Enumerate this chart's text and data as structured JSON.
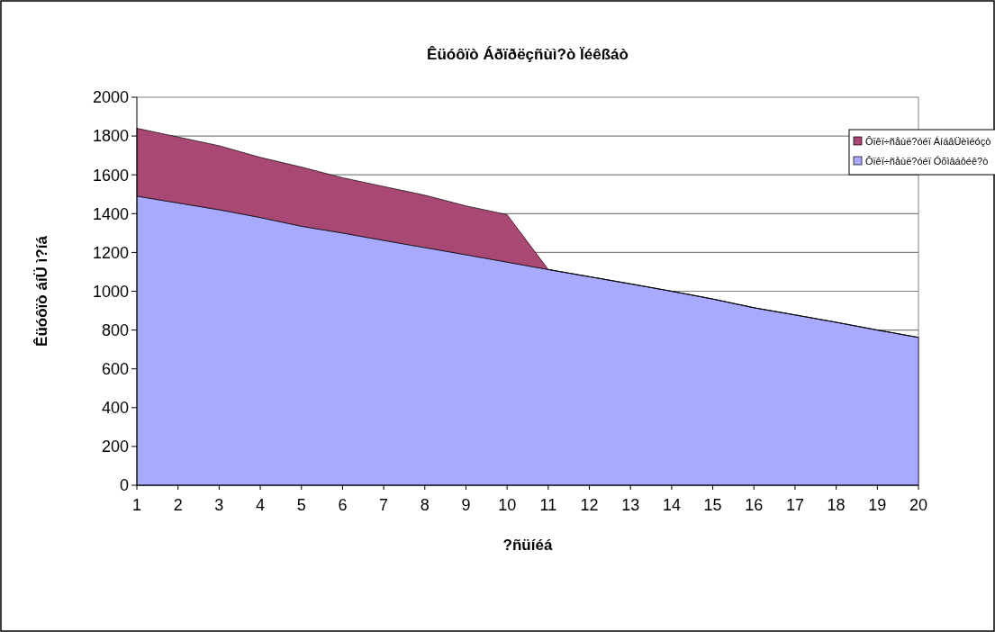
{
  "chart_data": {
    "type": "area",
    "stacked": true,
    "title": "Êüóôïò Áðïðëçñùì?ò Ïéêßáò",
    "xlabel": "?ñüíéá",
    "ylabel": "Êüóôïò áíÜ ì?íá",
    "x": [
      1,
      2,
      3,
      4,
      5,
      6,
      7,
      8,
      9,
      10,
      11,
      12,
      13,
      14,
      15,
      16,
      17,
      18,
      19,
      20
    ],
    "series": [
      {
        "name": "Ôïêï÷ñåùë?óéï Óõìâáôéê?ò",
        "color": "#a8aaff",
        "values": [
          1490,
          1455,
          1420,
          1380,
          1335,
          1300,
          1262,
          1225,
          1188,
          1150,
          1112,
          1075,
          1038,
          1000,
          960,
          915,
          878,
          840,
          800,
          762
        ]
      },
      {
        "name": "Ôïêï÷ñåùë?óéï ÁíáâÜèìéóçò",
        "color": "#a94874",
        "values": [
          350,
          340,
          330,
          310,
          305,
          285,
          278,
          270,
          252,
          245,
          0,
          0,
          0,
          0,
          0,
          0,
          0,
          0,
          0,
          0
        ]
      }
    ],
    "xlim": [
      1,
      20
    ],
    "xticks": [
      1,
      2,
      3,
      4,
      5,
      6,
      7,
      8,
      9,
      10,
      11,
      12,
      13,
      14,
      15,
      16,
      17,
      18,
      19,
      20
    ],
    "ylim": [
      0,
      2000
    ],
    "yticks": [
      0,
      200,
      400,
      600,
      800,
      1000,
      1200,
      1400,
      1600,
      1800,
      2000
    ],
    "grid": "y",
    "legend": "top right"
  }
}
